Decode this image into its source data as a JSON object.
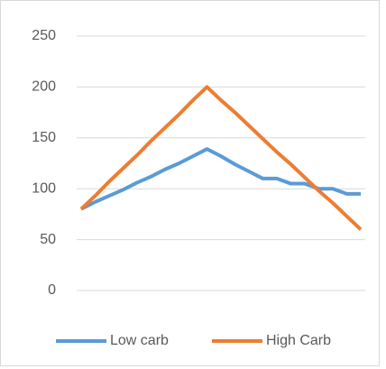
{
  "chart_data": {
    "type": "line",
    "categories": [
      null,
      null,
      null,
      null,
      null,
      null,
      null,
      null,
      null,
      null,
      null,
      null,
      null,
      null,
      null,
      null,
      null,
      null,
      null,
      null,
      null
    ],
    "series": [
      {
        "name": "Low carb",
        "color": "#5b9bd5",
        "values": [
          80,
          87,
          93,
          99,
          106,
          112,
          119,
          125,
          132,
          139,
          132,
          124,
          117,
          110,
          110,
          105,
          105,
          100,
          100,
          95,
          95
        ]
      },
      {
        "name": "High Carb",
        "color": "#ed7d31",
        "values": [
          80,
          93,
          107,
          120,
          133,
          147,
          160,
          173,
          187,
          200,
          187,
          175,
          162,
          149,
          136,
          124,
          111,
          98,
          86,
          73,
          60
        ]
      }
    ],
    "ylim": [
      0,
      250
    ],
    "yticks": [
      0,
      50,
      100,
      150,
      200,
      250
    ],
    "grid": true,
    "legend": "bottom"
  }
}
